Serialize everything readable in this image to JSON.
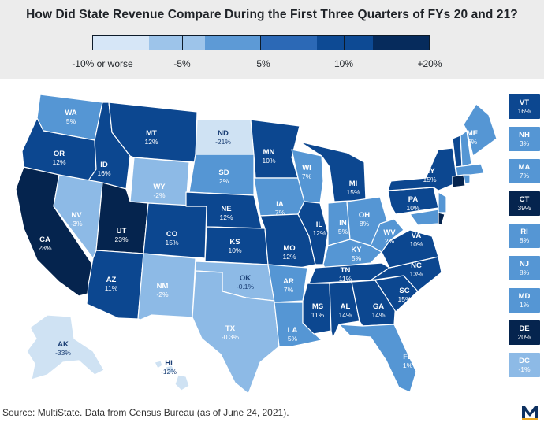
{
  "title": "How Did State Revenue Compare During the First Three Quarters of FYs 20 and 21?",
  "legend": {
    "labels": [
      "-10% or worse",
      "-5%",
      "5%",
      "10%",
      "+20%"
    ],
    "colors": [
      "#d6e6f7",
      "#9dc4ea",
      "#5d9ad6",
      "#2c69b6",
      "#0d4a94",
      "#062b5c"
    ]
  },
  "colors": {
    "c1": "#cfe2f3",
    "c2": "#8dbae6",
    "c3": "#5596d4",
    "c4": "#2567b3",
    "c5": "#0c4790",
    "c6": "#05244e"
  },
  "states": [
    {
      "ab": "WA",
      "v": "5%"
    },
    {
      "ab": "OR",
      "v": "12%"
    },
    {
      "ab": "CA",
      "v": "28%"
    },
    {
      "ab": "ID",
      "v": "16%"
    },
    {
      "ab": "NV",
      "v": "-3%"
    },
    {
      "ab": "MT",
      "v": "12%"
    },
    {
      "ab": "WY",
      "v": "-2%"
    },
    {
      "ab": "UT",
      "v": "23%"
    },
    {
      "ab": "AZ",
      "v": "11%"
    },
    {
      "ab": "CO",
      "v": "15%"
    },
    {
      "ab": "NM",
      "v": "-2%"
    },
    {
      "ab": "ND",
      "v": "-21%"
    },
    {
      "ab": "SD",
      "v": "2%"
    },
    {
      "ab": "NE",
      "v": "12%"
    },
    {
      "ab": "KS",
      "v": "10%"
    },
    {
      "ab": "OK",
      "v": "-0.1%"
    },
    {
      "ab": "TX",
      "v": "-0.3%"
    },
    {
      "ab": "MN",
      "v": "10%"
    },
    {
      "ab": "IA",
      "v": "7%"
    },
    {
      "ab": "MO",
      "v": "12%"
    },
    {
      "ab": "AR",
      "v": "7%"
    },
    {
      "ab": "LA",
      "v": "5%"
    },
    {
      "ab": "WI",
      "v": "7%"
    },
    {
      "ab": "IL",
      "v": "12%"
    },
    {
      "ab": "MI",
      "v": "15%"
    },
    {
      "ab": "IN",
      "v": "5%"
    },
    {
      "ab": "OH",
      "v": "8%"
    },
    {
      "ab": "KY",
      "v": "5%"
    },
    {
      "ab": "TN",
      "v": "11%"
    },
    {
      "ab": "MS",
      "v": "11%"
    },
    {
      "ab": "AL",
      "v": "14%"
    },
    {
      "ab": "GA",
      "v": "14%"
    },
    {
      "ab": "FL",
      "v": "1%"
    },
    {
      "ab": "SC",
      "v": "15%"
    },
    {
      "ab": "NC",
      "v": "13%"
    },
    {
      "ab": "VA",
      "v": "10%"
    },
    {
      "ab": "WV",
      "v": "2%"
    },
    {
      "ab": "PA",
      "v": "10%"
    },
    {
      "ab": "NY",
      "v": "15%"
    },
    {
      "ab": "ME",
      "v": "6%"
    },
    {
      "ab": "AK",
      "v": "-33%"
    },
    {
      "ab": "HI",
      "v": "-12%"
    }
  ],
  "small_states": [
    {
      "ab": "VT",
      "v": "16%"
    },
    {
      "ab": "NH",
      "v": "3%"
    },
    {
      "ab": "MA",
      "v": "7%"
    },
    {
      "ab": "CT",
      "v": "39%"
    },
    {
      "ab": "RI",
      "v": "8%"
    },
    {
      "ab": "NJ",
      "v": "8%"
    },
    {
      "ab": "MD",
      "v": "1%"
    },
    {
      "ab": "DE",
      "v": "20%"
    },
    {
      "ab": "DC",
      "v": "-1%"
    }
  ],
  "source": "Source: MultiState. Data from Census Bureau (as of June 24, 2021).",
  "logo_letter": "M"
}
